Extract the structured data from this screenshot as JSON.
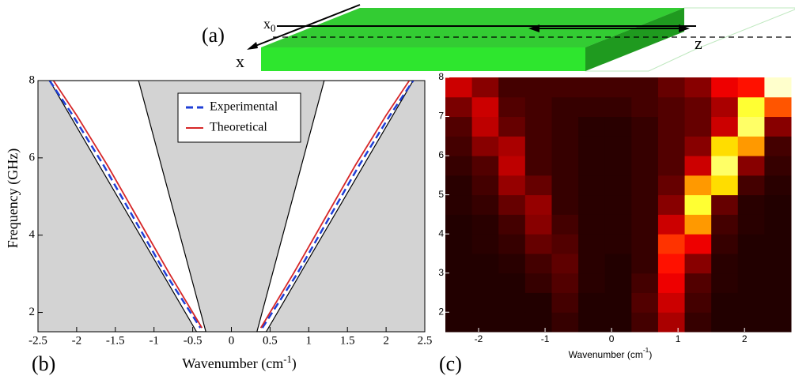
{
  "diagram": {
    "panel_label": "(a)",
    "offset_label": {
      "base": "x",
      "subscript": "0"
    },
    "axis_labels": [
      "x",
      "z"
    ]
  },
  "chart_data": [
    {
      "type": "line",
      "panel_label": "(b)",
      "xlabel": {
        "text": "Wavenumber (cm",
        "superscript": "-1",
        "suffix": ")"
      },
      "ylabel": "Frequency (GHz)",
      "xlim": [
        -2.5,
        2.5
      ],
      "ylim": [
        1.5,
        8
      ],
      "xticks": [
        -2.5,
        -2,
        -1.5,
        -1,
        -0.5,
        0,
        0.5,
        1,
        1.5,
        2,
        2.5
      ],
      "yticks": [
        2,
        4,
        6,
        8
      ],
      "background": "#d3d3d3",
      "regions": [
        {
          "x": [
            0.33,
            1.2,
            2.35,
            0.45
          ],
          "y": [
            1.5,
            8,
            8,
            1.5
          ]
        },
        {
          "x": [
            -0.33,
            -1.2,
            -2.35,
            -0.45
          ],
          "y": [
            1.5,
            8,
            8,
            1.5
          ]
        }
      ],
      "series": [
        {
          "name": "Experimental",
          "color": "#1f3fd6",
          "dash": true,
          "x": [
            -2.35,
            -2.05,
            -1.65,
            -1.25,
            -0.85,
            -0.4,
            null,
            0.4,
            0.85,
            1.25,
            1.65,
            2.05,
            2.35
          ],
          "y": [
            8,
            7.1,
            5.8,
            4.4,
            3,
            1.6,
            null,
            1.6,
            3,
            4.4,
            5.8,
            7.1,
            8
          ]
        },
        {
          "name": "Theoretical",
          "color": "#d62728",
          "dash": false,
          "x": [
            -2.3,
            -2.0,
            -1.6,
            -1.2,
            -0.8,
            -0.38,
            null,
            0.38,
            0.8,
            1.2,
            1.6,
            2.0,
            2.3
          ],
          "y": [
            8,
            7.1,
            5.8,
            4.4,
            3,
            1.6,
            null,
            1.6,
            3,
            4.4,
            5.8,
            7.1,
            8
          ]
        }
      ]
    },
    {
      "type": "heatmap",
      "panel_label": "(c)",
      "xlabel": {
        "text": "Wavenumber (cm",
        "superscript": "-1",
        "suffix": ")"
      },
      "xlim": [
        -2.5,
        2.7
      ],
      "ylim": [
        1.5,
        8
      ],
      "xticks": [
        -2,
        -1,
        0,
        1,
        2
      ],
      "yticks": [
        2,
        3,
        4,
        5,
        6,
        7,
        8
      ],
      "colormap": "hot",
      "x": [
        -2.3,
        -1.9,
        -1.5,
        -1.1,
        -0.7,
        -0.3,
        0.1,
        0.5,
        0.9,
        1.3,
        1.7,
        2.1,
        2.5
      ],
      "y": [
        1.75,
        2.25,
        2.75,
        3.25,
        3.75,
        4.25,
        4.75,
        5.25,
        5.75,
        6.25,
        6.75,
        7.25,
        7.75
      ],
      "values": [
        [
          0.05,
          0.05,
          0.05,
          0.05,
          0.08,
          0.05,
          0.05,
          0.1,
          0.25,
          0.08,
          0.05,
          0.05,
          0.05
        ],
        [
          0.05,
          0.05,
          0.05,
          0.05,
          0.1,
          0.05,
          0.05,
          0.12,
          0.3,
          0.1,
          0.05,
          0.05,
          0.05
        ],
        [
          0.05,
          0.05,
          0.05,
          0.08,
          0.12,
          0.06,
          0.05,
          0.1,
          0.35,
          0.12,
          0.06,
          0.05,
          0.05
        ],
        [
          0.05,
          0.05,
          0.06,
          0.1,
          0.14,
          0.06,
          0.05,
          0.08,
          0.4,
          0.2,
          0.06,
          0.05,
          0.05
        ],
        [
          0.05,
          0.06,
          0.08,
          0.15,
          0.12,
          0.06,
          0.06,
          0.08,
          0.45,
          0.35,
          0.08,
          0.05,
          0.05
        ],
        [
          0.05,
          0.06,
          0.1,
          0.2,
          0.1,
          0.06,
          0.06,
          0.08,
          0.3,
          0.6,
          0.1,
          0.06,
          0.05
        ],
        [
          0.06,
          0.08,
          0.15,
          0.22,
          0.08,
          0.06,
          0.06,
          0.08,
          0.2,
          0.8,
          0.15,
          0.06,
          0.05
        ],
        [
          0.06,
          0.1,
          0.22,
          0.15,
          0.08,
          0.06,
          0.06,
          0.08,
          0.15,
          0.6,
          0.7,
          0.1,
          0.06
        ],
        [
          0.08,
          0.12,
          0.28,
          0.1,
          0.08,
          0.06,
          0.06,
          0.08,
          0.12,
          0.3,
          0.85,
          0.2,
          0.08
        ],
        [
          0.1,
          0.2,
          0.25,
          0.1,
          0.08,
          0.06,
          0.06,
          0.08,
          0.12,
          0.2,
          0.7,
          0.6,
          0.1
        ],
        [
          0.12,
          0.28,
          0.15,
          0.1,
          0.08,
          0.06,
          0.06,
          0.08,
          0.12,
          0.15,
          0.3,
          0.85,
          0.2
        ],
        [
          0.18,
          0.3,
          0.12,
          0.1,
          0.08,
          0.08,
          0.08,
          0.1,
          0.12,
          0.15,
          0.25,
          0.8,
          0.5
        ],
        [
          0.3,
          0.2,
          0.1,
          0.1,
          0.1,
          0.1,
          0.1,
          0.1,
          0.15,
          0.2,
          0.35,
          0.4,
          0.95
        ]
      ]
    }
  ]
}
